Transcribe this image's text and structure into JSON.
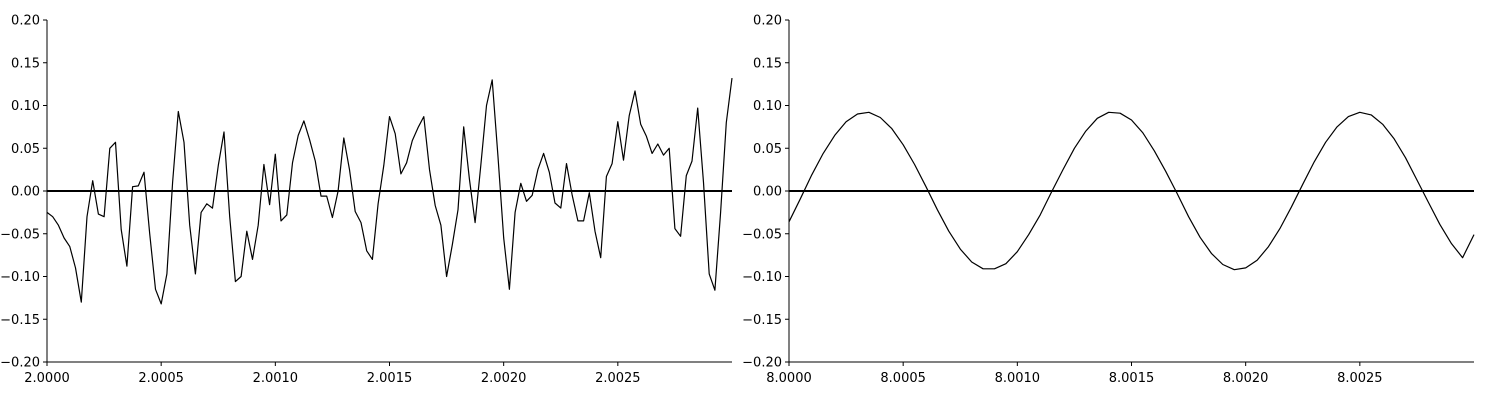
{
  "chart_data": [
    {
      "type": "line",
      "title": "",
      "xlabel": "",
      "ylabel": "",
      "xlim": [
        2.0,
        2.003
      ],
      "ylim": [
        -0.2,
        0.2
      ],
      "grid": false,
      "xticks": [
        2.0,
        2.0005,
        2.001,
        2.0015,
        2.002,
        2.0025
      ],
      "xtick_labels": [
        "2.0000",
        "2.0005",
        "2.0010",
        "2.0015",
        "2.0020",
        "2.0025"
      ],
      "yticks": [
        -0.2,
        -0.15,
        -0.1,
        -0.05,
        0.0,
        0.05,
        0.1,
        0.15,
        0.2
      ],
      "ytick_labels": [
        "−0.20",
        "−0.15",
        "−0.10",
        "−0.05",
        "0.00",
        "0.05",
        "0.10",
        "0.15",
        "0.20"
      ],
      "hline": 0,
      "line_color": "#000000",
      "series": [
        {
          "x": [
            2.0,
            2.000025,
            2.00005,
            2.000075,
            2.0001,
            2.000125,
            2.00015,
            2.000175,
            2.0002,
            2.000225,
            2.00025,
            2.000275,
            2.0003,
            2.000325,
            2.00035,
            2.000375,
            2.0004,
            2.000425,
            2.00045,
            2.000475,
            2.0005,
            2.000525,
            2.00055,
            2.000575,
            2.0006,
            2.000625,
            2.00065,
            2.000675,
            2.0007,
            2.000725,
            2.00075,
            2.000775,
            2.0008,
            2.000825,
            2.00085,
            2.000875,
            2.0009,
            2.000925,
            2.00095,
            2.000975,
            2.001,
            2.001025,
            2.00105,
            2.001075,
            2.0011,
            2.001125,
            2.00115,
            2.001175,
            2.0012,
            2.001225,
            2.00125,
            2.001275,
            2.0013,
            2.001325,
            2.00135,
            2.001375,
            2.0014,
            2.001425,
            2.00145,
            2.001475,
            2.0015,
            2.001525,
            2.00155,
            2.001575,
            2.0016,
            2.001625,
            2.00165,
            2.001675,
            2.0017,
            2.001725,
            2.00175,
            2.001775,
            2.0018,
            2.001825,
            2.00185,
            2.001875,
            2.0019,
            2.001925,
            2.00195,
            2.001975,
            2.002,
            2.002025,
            2.00205,
            2.002075,
            2.0021,
            2.002125,
            2.00215,
            2.002175,
            2.0022,
            2.002225,
            2.00225,
            2.002275,
            2.0023,
            2.002325,
            2.00235,
            2.002375,
            2.0024,
            2.002425,
            2.00245,
            2.002475,
            2.0025,
            2.002525,
            2.00255,
            2.002575,
            2.0026,
            2.002625,
            2.00265,
            2.002675,
            2.0027,
            2.002725,
            2.00275,
            2.002775,
            2.0028,
            2.002825,
            2.00285,
            2.002875,
            2.0029,
            2.002925,
            2.00295,
            2.002975,
            2.003
          ],
          "y": [
            -0.025,
            -0.03,
            -0.04,
            -0.055,
            -0.065,
            -0.09,
            -0.13,
            -0.03,
            0.012,
            -0.027,
            -0.03,
            0.05,
            0.057,
            -0.045,
            -0.088,
            0.005,
            0.006,
            0.022,
            -0.05,
            -0.115,
            -0.132,
            -0.097,
            0.01,
            0.093,
            0.057,
            -0.04,
            -0.097,
            -0.025,
            -0.015,
            -0.02,
            0.03,
            0.069,
            -0.03,
            -0.106,
            -0.1,
            -0.047,
            -0.08,
            -0.04,
            0.031,
            -0.016,
            0.043,
            -0.035,
            -0.028,
            0.033,
            0.065,
            0.082,
            0.06,
            0.035,
            -0.006,
            -0.006,
            -0.031,
            0.0,
            0.062,
            0.025,
            -0.024,
            -0.037,
            -0.07,
            -0.08,
            -0.015,
            0.03,
            0.087,
            0.067,
            0.02,
            0.033,
            0.059,
            0.074,
            0.087,
            0.025,
            -0.017,
            -0.04,
            -0.1,
            -0.063,
            -0.022,
            0.075,
            0.014,
            -0.037,
            0.03,
            0.1,
            0.13,
            0.04,
            -0.055,
            -0.115,
            -0.025,
            0.009,
            -0.012,
            -0.005,
            0.025,
            0.044,
            0.022,
            -0.014,
            -0.02,
            0.032,
            -0.005,
            -0.035,
            -0.035,
            -0.002,
            -0.047,
            -0.078,
            0.017,
            0.032,
            0.081,
            0.036,
            0.088,
            0.117,
            0.078,
            0.064,
            0.044,
            0.055,
            0.042,
            0.05,
            -0.044,
            -0.053,
            0.018,
            0.035,
            0.097,
            0.01,
            -0.097,
            -0.116,
            -0.025,
            0.08,
            0.132
          ]
        }
      ]
    },
    {
      "type": "line",
      "title": "",
      "xlabel": "",
      "ylabel": "",
      "xlim": [
        8.0,
        8.003
      ],
      "ylim": [
        -0.2,
        0.2
      ],
      "grid": false,
      "xticks": [
        8.0,
        8.0005,
        8.001,
        8.0015,
        8.002,
        8.0025
      ],
      "xtick_labels": [
        "8.0000",
        "8.0005",
        "8.0010",
        "8.0015",
        "8.0020",
        "8.0025"
      ],
      "yticks": [
        -0.2,
        -0.15,
        -0.1,
        -0.05,
        0.0,
        0.05,
        0.1,
        0.15,
        0.2
      ],
      "ytick_labels": [
        "−0.20",
        "−0.15",
        "−0.10",
        "−0.05",
        "0.00",
        "0.05",
        "0.10",
        "0.15",
        "0.20"
      ],
      "hline": 0,
      "line_color": "#000000",
      "series": [
        {
          "x": [
            8.0,
            8.00005,
            8.0001,
            8.00015,
            8.0002,
            8.00025,
            8.0003,
            8.00035,
            8.0004,
            8.00045,
            8.0005,
            8.00055,
            8.0006,
            8.00065,
            8.0007,
            8.00075,
            8.0008,
            8.00085,
            8.0009,
            8.00095,
            8.001,
            8.00105,
            8.0011,
            8.00115,
            8.0012,
            8.00125,
            8.0013,
            8.00135,
            8.0014,
            8.00145,
            8.0015,
            8.00155,
            8.0016,
            8.00165,
            8.0017,
            8.00175,
            8.0018,
            8.00185,
            8.0019,
            8.00195,
            8.002,
            8.00205,
            8.0021,
            8.00215,
            8.0022,
            8.00225,
            8.0023,
            8.00235,
            8.0024,
            8.00245,
            8.0025,
            8.00255,
            8.0026,
            8.00265,
            8.0027,
            8.00275,
            8.0028,
            8.00285,
            8.0029,
            8.00295,
            8.003
          ],
          "y": [
            -0.036,
            -0.009,
            0.019,
            0.044,
            0.065,
            0.081,
            0.09,
            0.092,
            0.086,
            0.073,
            0.054,
            0.031,
            0.005,
            -0.022,
            -0.047,
            -0.068,
            -0.083,
            -0.091,
            -0.091,
            -0.085,
            -0.071,
            -0.051,
            -0.028,
            -0.001,
            0.025,
            0.05,
            0.07,
            0.085,
            0.092,
            0.091,
            0.083,
            0.068,
            0.047,
            0.023,
            -0.003,
            -0.03,
            -0.054,
            -0.073,
            -0.086,
            -0.092,
            -0.09,
            -0.081,
            -0.065,
            -0.044,
            -0.019,
            0.008,
            0.034,
            0.057,
            0.075,
            0.087,
            0.092,
            0.089,
            0.078,
            0.061,
            0.039,
            0.013,
            -0.013,
            -0.039,
            -0.061,
            -0.078,
            -0.051
          ]
        }
      ]
    }
  ]
}
